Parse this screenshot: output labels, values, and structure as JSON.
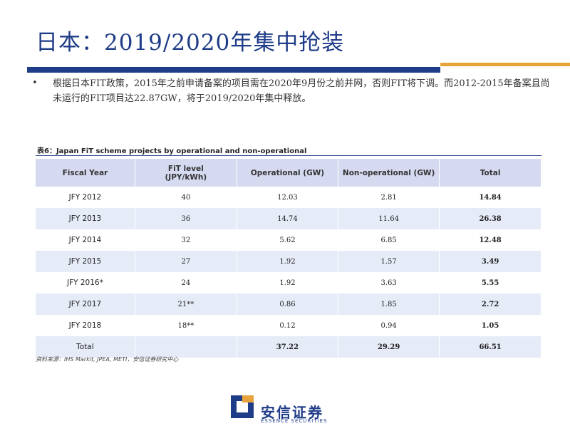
{
  "header": {
    "title": "日本：2019/2020年集中抢装"
  },
  "bullet": "根据日本FIT政策，2015年之前申请备案的项目需在2020年9月份之前并网，否则FIT将下调。而2012-2015年备案且尚未运行的FIT项目达22.87GW，将于2019/2020年集中释放。",
  "table": {
    "caption": "表6：Japan FiT scheme projects by operational and non-operational",
    "columns": [
      "Fiscal Year",
      [
        "FiT level",
        "(JPY/kWh)"
      ],
      "Operational (GW)",
      "Non-operational (GW)",
      "Total"
    ],
    "rows": [
      [
        "JFY 2012",
        "40",
        "12.03",
        "2.81",
        "14.84"
      ],
      [
        "JFY 2013",
        "36",
        "14.74",
        "11.64",
        "26.38"
      ],
      [
        "JFY 2014",
        "32",
        "5.62",
        "6.85",
        "12.48"
      ],
      [
        "JFY 2015",
        "27",
        "1.92",
        "1.57",
        "3.49"
      ],
      [
        "JFY 2016*",
        "24",
        "1.92",
        "3.63",
        "5.55"
      ],
      [
        "JFY 2017",
        "21**",
        "0.86",
        "1.85",
        "2.72"
      ],
      [
        "JFY 2018",
        "18**",
        "0.12",
        "0.94",
        "1.05"
      ],
      [
        "Total",
        "",
        "37.22",
        "29.29",
        "66.51"
      ]
    ],
    "source": "资料来源：IHS Markit, JPEA, METI，安信证券研究中心"
  },
  "logo": {
    "name": "安信证券",
    "english": "ESSENCE SECURITIES"
  }
}
